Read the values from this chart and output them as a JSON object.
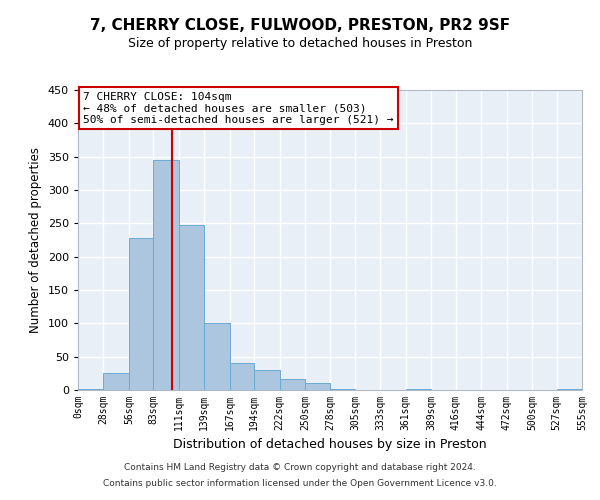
{
  "title": "7, CHERRY CLOSE, FULWOOD, PRESTON, PR2 9SF",
  "subtitle": "Size of property relative to detached houses in Preston",
  "xlabel": "Distribution of detached houses by size in Preston",
  "ylabel": "Number of detached properties",
  "bar_color": "#adc6e0",
  "bar_edge_color": "#6aaad4",
  "background_color": "#e8eff6",
  "grid_color": "white",
  "property_line_x": 104,
  "property_line_color": "#cc0000",
  "annotation_title": "7 CHERRY CLOSE: 104sqm",
  "annotation_line1": "← 48% of detached houses are smaller (503)",
  "annotation_line2": "50% of semi-detached houses are larger (521) →",
  "annotation_box_edgecolor": "#cc0000",
  "bin_edges": [
    0,
    28,
    56,
    83,
    111,
    139,
    167,
    194,
    222,
    250,
    278,
    305,
    333,
    361,
    389,
    416,
    444,
    472,
    500,
    527,
    555
  ],
  "bin_heights": [
    2,
    25,
    228,
    345,
    247,
    101,
    40,
    30,
    16,
    10,
    2,
    0,
    0,
    1,
    0,
    0,
    0,
    0,
    0,
    1
  ],
  "ylim": [
    0,
    450
  ],
  "yticks": [
    0,
    50,
    100,
    150,
    200,
    250,
    300,
    350,
    400,
    450
  ],
  "footer_line1": "Contains HM Land Registry data © Crown copyright and database right 2024.",
  "footer_line2": "Contains public sector information licensed under the Open Government Licence v3.0."
}
